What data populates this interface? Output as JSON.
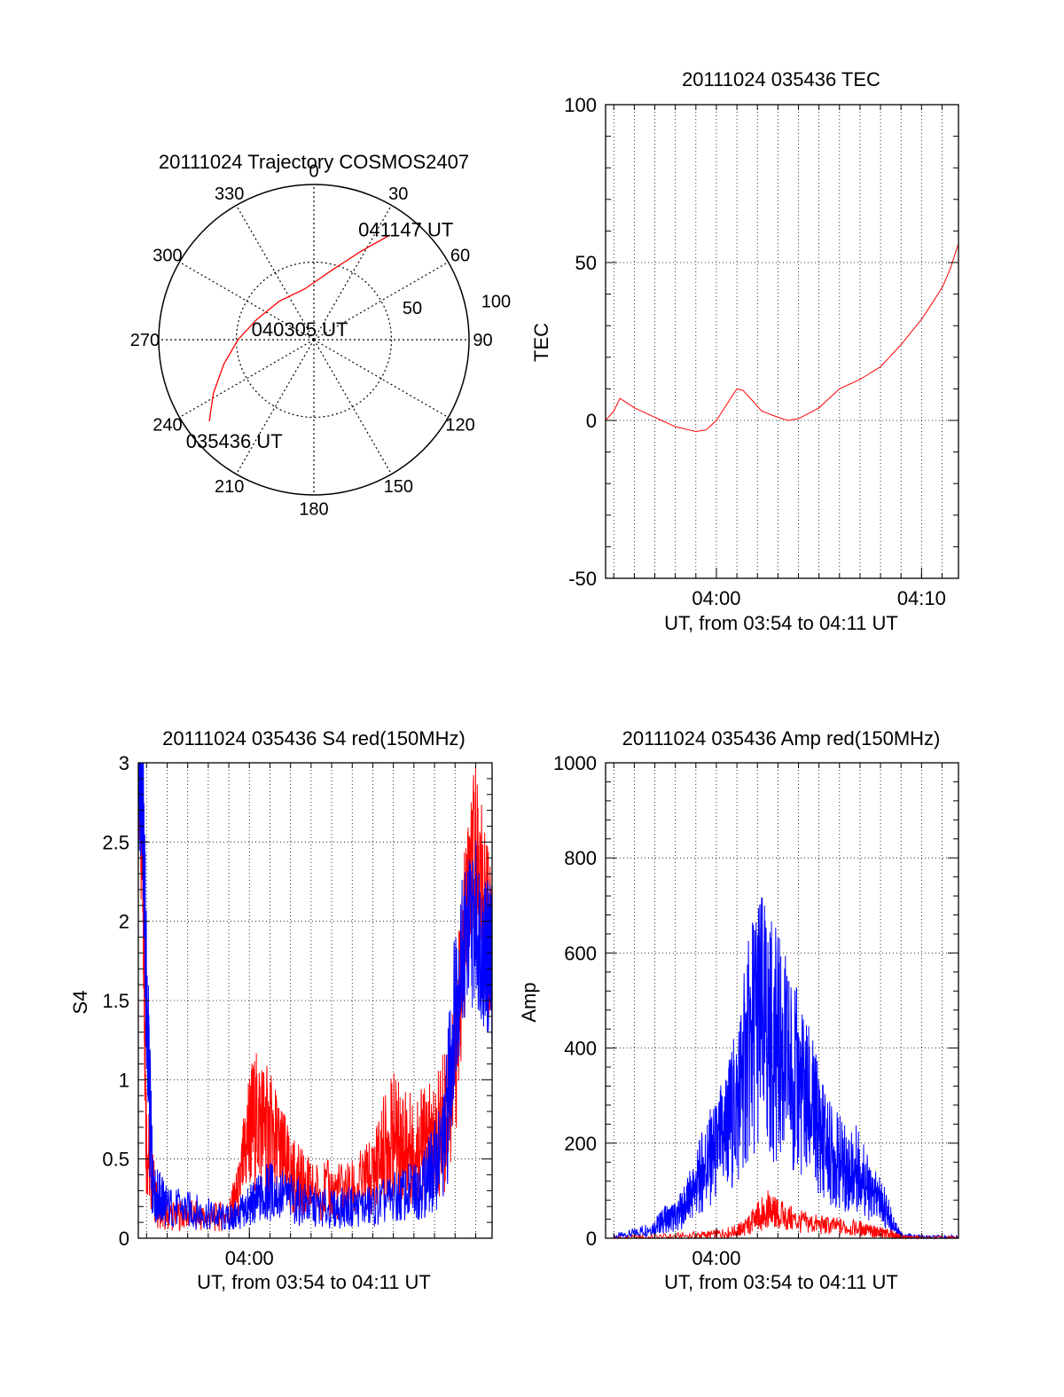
{
  "colors": {
    "red": "#ff0000",
    "blue": "#0000ff",
    "axis": "#000000",
    "grid": "#000000"
  },
  "chart_data": [
    {
      "id": "polar",
      "type": "polar-trajectory",
      "title": "20111024 Trajectory COSMOS2407",
      "azimuth_labels": [
        "0",
        "30",
        "60",
        "90",
        "120",
        "150",
        "180",
        "210",
        "240",
        "270",
        "300",
        "330"
      ],
      "elevation_ring_labels": [
        "50",
        "100"
      ],
      "rings_zenith_angle": [
        45,
        90
      ],
      "trajectory": [
        {
          "az": 232,
          "za": 77
        },
        {
          "az": 242,
          "za": 66
        },
        {
          "az": 255,
          "za": 54
        },
        {
          "az": 270,
          "za": 44
        },
        {
          "az": 290,
          "za": 35
        },
        {
          "az": 318,
          "za": 30
        },
        {
          "az": 350,
          "za": 30
        },
        {
          "az": 15,
          "za": 42
        },
        {
          "az": 28,
          "za": 58
        },
        {
          "az": 36,
          "za": 75
        }
      ],
      "annotations": [
        {
          "text": "041147 UT",
          "az": 40,
          "za": 83
        },
        {
          "text": "040305 UT",
          "az": 305,
          "za": 10
        },
        {
          "text": "035436 UT",
          "az": 218,
          "za": 75
        }
      ]
    },
    {
      "id": "tec",
      "type": "line",
      "title": "20111024 035436 TEC",
      "xlabel": "UT, from 03:54 to 04:11 UT",
      "ylabel": "TEC",
      "xlim": [
        234.6,
        251.8
      ],
      "ylim": [
        -50,
        100
      ],
      "xticks": [
        {
          "v": 240,
          "label": "04:00"
        },
        {
          "v": 250,
          "label": "04:10"
        }
      ],
      "yticks": [
        -50,
        0,
        50,
        100
      ],
      "series": [
        {
          "color": "#ff0000",
          "x": [
            234.6,
            235.0,
            235.3,
            236.0,
            237.0,
            238.0,
            239.0,
            239.5,
            240.0,
            240.6,
            241.0,
            241.3,
            241.8,
            242.2,
            243.0,
            243.5,
            244.0,
            245.0,
            246.0,
            247.0,
            248.0,
            249.0,
            250.0,
            250.5,
            251.0,
            251.4,
            251.8
          ],
          "y": [
            0,
            3,
            7,
            4,
            1,
            -2,
            -3.5,
            -3,
            0,
            6,
            10,
            9.5,
            6,
            3,
            1,
            0,
            0.5,
            4,
            10,
            13,
            17,
            24,
            32,
            37,
            42,
            48,
            56
          ]
        }
      ]
    },
    {
      "id": "s4",
      "type": "line",
      "title": "20111024 035436 S4 red(150MHz)",
      "xlabel": "UT, from 03:54 to 04:11 UT",
      "ylabel": "S4",
      "xlim": [
        234.6,
        251.8
      ],
      "ylim": [
        0,
        3
      ],
      "xticks": [
        {
          "v": 240,
          "label": "04:00"
        }
      ],
      "yticks": [
        0,
        0.5,
        1,
        1.5,
        2,
        2.5,
        3
      ],
      "ytick_labels": [
        "0",
        "0.5",
        "1",
        "1.5",
        "2",
        "2.5",
        "3"
      ],
      "series": [
        {
          "name": "red",
          "color": "#ff0000",
          "x": [
            234.6,
            234.8,
            235.0,
            235.5,
            236.0,
            237.0,
            238.0,
            239.0,
            239.5,
            240.0,
            240.5,
            241.0,
            241.5,
            242.0,
            242.5,
            243.0,
            244.0,
            245.0,
            246.0,
            246.5,
            247.0,
            247.5,
            248.0,
            248.5,
            249.0,
            249.5,
            250.0,
            250.5,
            251.0,
            251.5,
            251.8
          ],
          "y": [
            3.0,
            2.5,
            0.6,
            0.2,
            0.15,
            0.15,
            0.12,
            0.15,
            0.3,
            0.7,
            0.75,
            0.65,
            0.55,
            0.4,
            0.35,
            0.3,
            0.3,
            0.3,
            0.4,
            0.55,
            0.65,
            0.6,
            0.55,
            0.6,
            0.6,
            0.75,
            1.1,
            2.0,
            2.5,
            2.0,
            1.8
          ]
        },
        {
          "name": "blue",
          "color": "#0000ff",
          "x": [
            234.6,
            234.8,
            235.0,
            235.3,
            235.7,
            236.0,
            237.0,
            238.0,
            239.0,
            239.5,
            240.0,
            240.5,
            241.0,
            242.0,
            243.0,
            244.0,
            245.0,
            246.0,
            247.0,
            248.0,
            248.5,
            249.0,
            249.5,
            250.0,
            250.5,
            251.0,
            251.5,
            251.8
          ],
          "y": [
            3.0,
            2.8,
            1.5,
            0.3,
            0.25,
            0.2,
            0.18,
            0.15,
            0.12,
            0.15,
            0.2,
            0.25,
            0.3,
            0.25,
            0.2,
            0.18,
            0.2,
            0.2,
            0.25,
            0.3,
            0.35,
            0.45,
            0.6,
            1.5,
            1.9,
            2.0,
            1.8,
            1.7
          ]
        }
      ]
    },
    {
      "id": "amp",
      "type": "line",
      "title": "20111024 035436 Amp red(150MHz)",
      "xlabel": "UT, from 03:54 to 04:11 UT",
      "ylabel": "Amp",
      "xlim": [
        234.6,
        251.8
      ],
      "ylim": [
        0,
        1000
      ],
      "xticks": [
        {
          "v": 240,
          "label": "04:00"
        }
      ],
      "yticks": [
        0,
        200,
        400,
        600,
        800,
        1000
      ],
      "series": [
        {
          "name": "blue",
          "color": "#0000ff",
          "x": [
            235.0,
            236.0,
            237.0,
            237.5,
            238.0,
            238.5,
            239.0,
            239.5,
            240.0,
            240.5,
            241.0,
            241.5,
            242.0,
            242.5,
            243.0,
            243.5,
            244.0,
            244.5,
            245.0,
            245.5,
            246.0,
            246.5,
            247.0,
            247.5,
            248.0,
            248.5,
            249.0,
            250.0,
            251.0,
            251.8
          ],
          "y": [
            2,
            10,
            25,
            40,
            45,
            70,
            110,
            160,
            180,
            230,
            280,
            380,
            470,
            430,
            400,
            360,
            320,
            280,
            230,
            180,
            160,
            140,
            150,
            90,
            80,
            40,
            5,
            1,
            1,
            1
          ]
        },
        {
          "name": "red",
          "color": "#ff0000",
          "x": [
            235.0,
            237.0,
            239.0,
            240.0,
            241.0,
            241.5,
            242.0,
            242.5,
            243.0,
            244.0,
            245.0,
            246.0,
            247.0,
            247.5,
            248.0,
            248.5,
            249.0,
            250.0,
            251.8
          ],
          "y": [
            0,
            2,
            6,
            8,
            15,
            25,
            45,
            60,
            50,
            35,
            28,
            24,
            20,
            15,
            12,
            8,
            2,
            0,
            0
          ]
        }
      ]
    }
  ]
}
